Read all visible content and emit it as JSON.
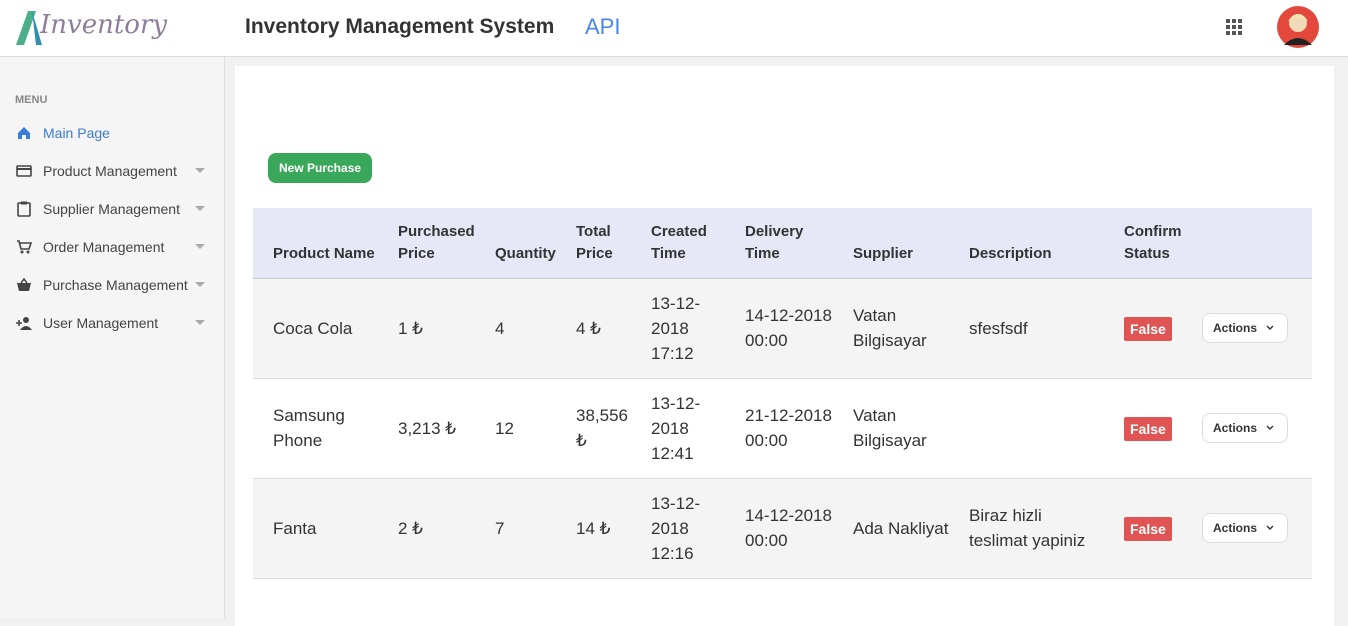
{
  "header": {
    "logo": "Inventory",
    "title": "Inventory Management System",
    "api": "API"
  },
  "sidebar": {
    "menu_label": "MENU",
    "items": [
      "Main Page",
      "Product Management",
      "Supplier Management",
      "Order Management",
      "Purchase Management",
      "User Management"
    ]
  },
  "button": "New Purchase",
  "table": {
    "headers": [
      "Product Name",
      "Purchased Price",
      "Quantity",
      "Total Price",
      "Created Time",
      "Delivery Time",
      "Supplier",
      "Description",
      "Confirm Status"
    ],
    "rows": [
      [
        "Coca Cola",
        "1 ₺",
        "4",
        "4 ₺",
        "13-12-2018 17:12",
        "14-12-2018 00:00",
        "Vatan Bilgisayar",
        "sfesfsdf",
        "False"
      ],
      [
        "Samsung Phone",
        "3,213 ₺",
        "12",
        "38,556 ₺",
        "13-12-2018 12:41",
        "21-12-2018 00:00",
        "Vatan Bilgisayar",
        "",
        "False"
      ],
      [
        "Fanta",
        "2 ₺",
        "7",
        "14 ₺",
        "13-12-2018 12:16",
        "14-12-2018 00:00",
        "Ada Nakliyat",
        "Biraz hizli teslimat yapiniz",
        "False"
      ]
    ],
    "action_label": "Actions"
  }
}
